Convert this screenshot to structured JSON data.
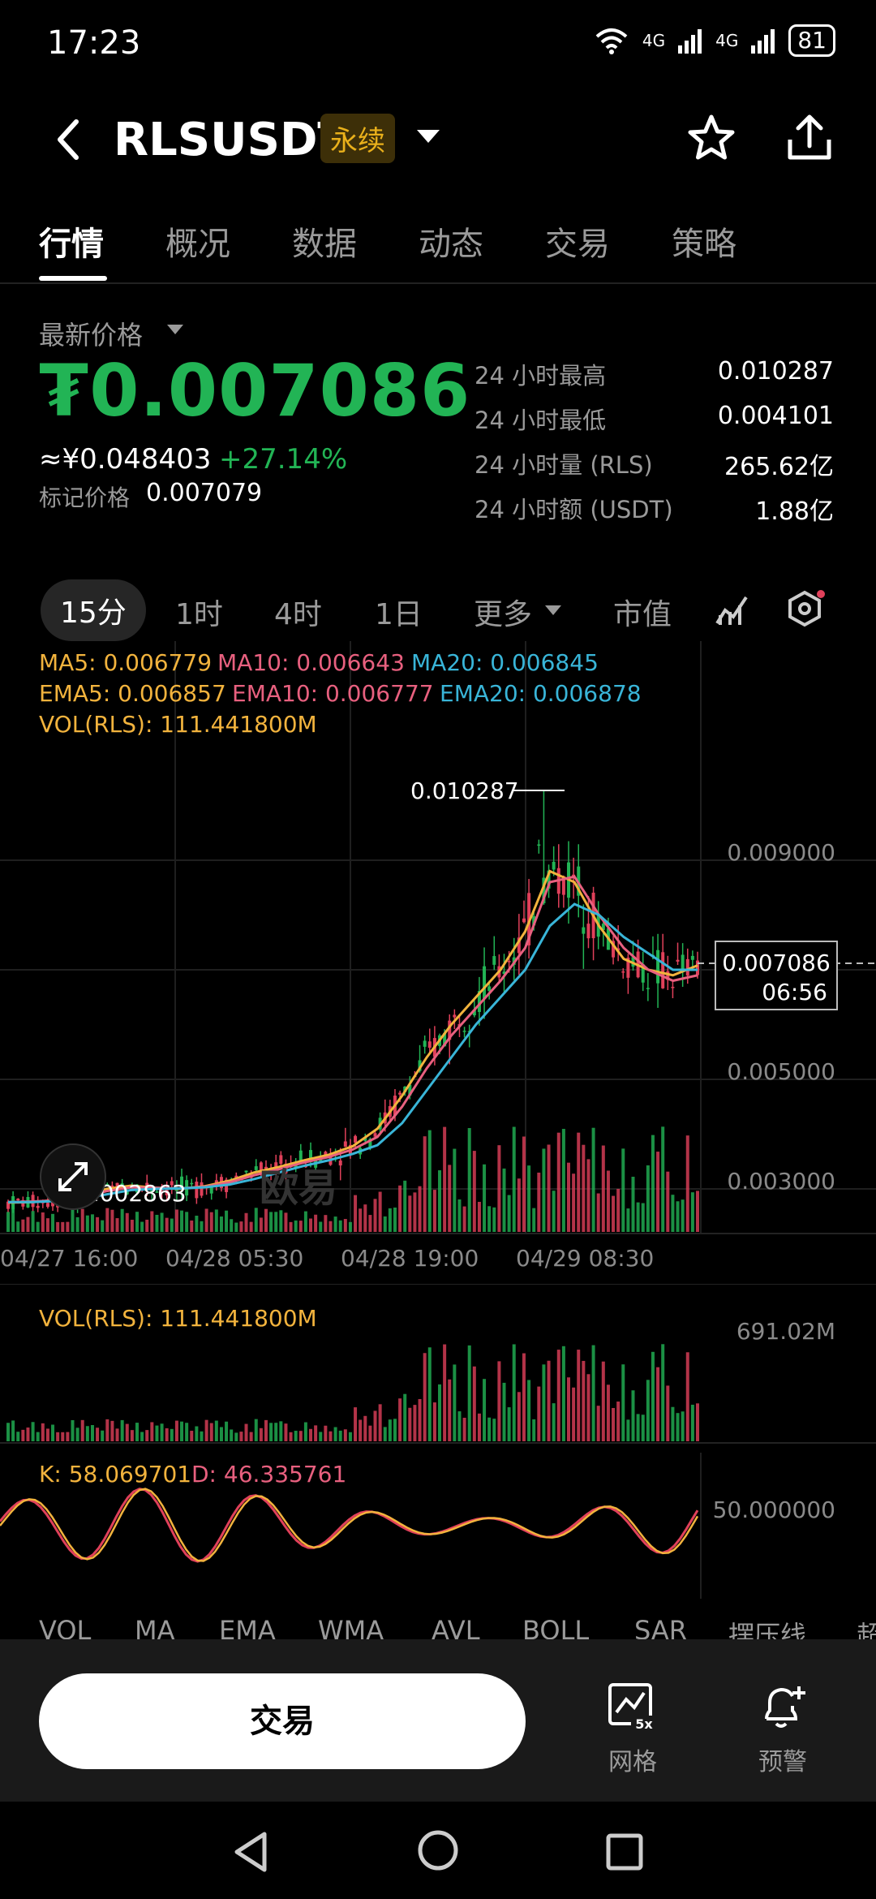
{
  "status_bar": {
    "time": "17:23",
    "battery": "81",
    "net1": "4G",
    "net2": "4G"
  },
  "header": {
    "symbol": "RLSUSDT",
    "badge": "永续"
  },
  "tabs": [
    "行情",
    "概况",
    "数据",
    "动态",
    "交易",
    "策略"
  ],
  "price": {
    "latest_label": "最新价格",
    "last": "₮0.007086",
    "approx_cny": "≈¥0.048403",
    "change_pct": "+27.14%",
    "mark_label": "标记价格",
    "mark_value": "0.007079"
  },
  "stats": [
    {
      "label": "24 小时最高",
      "value": "0.010287"
    },
    {
      "label": "24 小时最低",
      "value": "0.004101"
    },
    {
      "label": "24 小时量 (RLS)",
      "value": "265.62亿"
    },
    {
      "label": "24 小时额 (USDT)",
      "value": "1.88亿"
    }
  ],
  "intervals": [
    "15分",
    "1时",
    "4时",
    "1日",
    "更多",
    "市值"
  ],
  "indicators": {
    "ma5": "MA5: 0.006779",
    "ma10": "MA10: 0.006643",
    "ma20": "MA20: 0.006845",
    "ema5": "EMA5: 0.006857",
    "ema10": "EMA10: 0.006777",
    "ema20": "EMA20: 0.006878",
    "vol": "VOL(RLS): 111.441800M",
    "kdj_k": "K: 58.069701",
    "kdj_d": "D: 46.335761"
  },
  "colors": {
    "up": "#22b455",
    "down": "#e0405a",
    "ma5": "#f2b33d",
    "ma10": "#e8607f",
    "ma20": "#39b5d8"
  },
  "chart_data": {
    "type": "line",
    "y_ticks": [
      "0.009000",
      "0.005000",
      "0.003000"
    ],
    "x_ticks": [
      "04/27 16:00",
      "04/28 05:30",
      "04/28 19:00",
      "04/29 08:30"
    ],
    "high_label": "0.010287",
    "low_label": "0.002863",
    "current_price": "0.007086",
    "countdown": "06:56",
    "watermark": "欧易",
    "vol_max_label": "691.02M",
    "kdj_mid_label": "50.000000",
    "series": [
      {
        "name": "MA5",
        "values": [
          0.00275,
          0.00276,
          0.0028,
          0.00288,
          0.003,
          0.00306,
          0.00302,
          0.003,
          0.00305,
          0.00315,
          0.0033,
          0.0034,
          0.00352,
          0.00362,
          0.00378,
          0.0041,
          0.0047,
          0.0054,
          0.006,
          0.0065,
          0.007,
          0.0077,
          0.0088,
          0.0086,
          0.0078,
          0.0072,
          0.007,
          0.0069,
          0.00708
        ]
      },
      {
        "name": "MA10",
        "values": [
          0.00276,
          0.00277,
          0.00279,
          0.00285,
          0.00296,
          0.00303,
          0.00302,
          0.00301,
          0.00304,
          0.00312,
          0.00325,
          0.00336,
          0.00348,
          0.00358,
          0.00372,
          0.00395,
          0.0045,
          0.0052,
          0.0058,
          0.0063,
          0.0068,
          0.0074,
          0.0086,
          0.0087,
          0.008,
          0.0074,
          0.007,
          0.0068,
          0.0069
        ]
      },
      {
        "name": "MA20",
        "values": [
          0.00276,
          0.00276,
          0.00278,
          0.00282,
          0.0029,
          0.00298,
          0.003,
          0.00301,
          0.00303,
          0.00308,
          0.00318,
          0.0033,
          0.00342,
          0.00352,
          0.00364,
          0.0038,
          0.0042,
          0.0048,
          0.0054,
          0.006,
          0.0065,
          0.007,
          0.0078,
          0.0082,
          0.008,
          0.0076,
          0.0073,
          0.007,
          0.007
        ]
      }
    ]
  },
  "indicator_tabs": [
    "VOL",
    "MA",
    "EMA",
    "WMA",
    "AVL",
    "BOLL",
    "SAR",
    "摆压线",
    "超"
  ],
  "bottom": {
    "trade": "交易",
    "grid": "网格",
    "grid_badge": "5x",
    "alert": "预警"
  }
}
